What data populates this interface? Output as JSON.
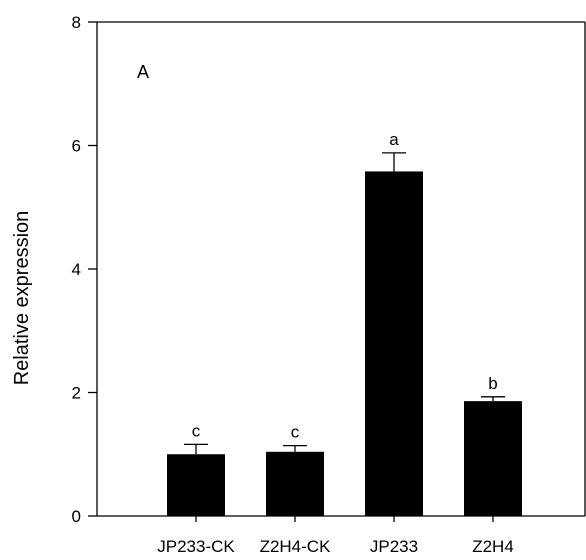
{
  "chart_data": {
    "type": "bar",
    "panel_label": "A",
    "ylabel": "Relative expression",
    "xlabel": "",
    "ylim": [
      0,
      8
    ],
    "yticks": [
      0,
      2,
      4,
      6,
      8
    ],
    "categories": [
      "JP233-CK",
      "Z2H4-CK",
      "JP233",
      "Z2H4"
    ],
    "values": [
      1.0,
      1.04,
      5.58,
      1.86
    ],
    "errors": [
      0.16,
      0.1,
      0.3,
      0.07
    ],
    "significance": [
      "c",
      "c",
      "a",
      "b"
    ],
    "bar_color": "#000000",
    "grid": false
  }
}
